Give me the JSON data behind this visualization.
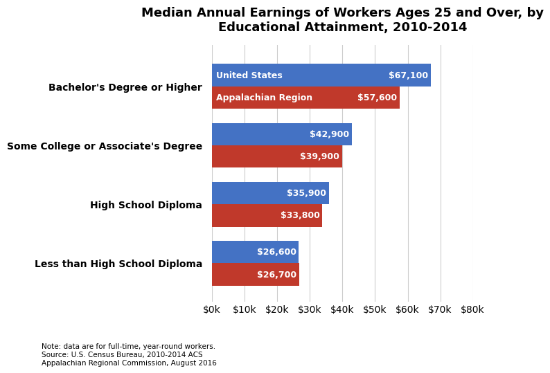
{
  "title": "Median Annual Earnings of Workers Ages 25 and Over, by\nEducational Attainment, 2010-2014",
  "categories": [
    "Less than High School Diploma",
    "High School Diploma",
    "Some College or Associate's Degree",
    "Bachelor's Degree or Higher"
  ],
  "us_values": [
    26600,
    35900,
    42900,
    67100
  ],
  "app_values": [
    26700,
    33800,
    39900,
    57600
  ],
  "us_color": "#4472C4",
  "app_color": "#C0392B",
  "us_label": "United States",
  "app_label": "Appalachian Region",
  "show_series_label": [
    false,
    false,
    false,
    true
  ],
  "xlim": [
    0,
    80000
  ],
  "xticks": [
    0,
    10000,
    20000,
    30000,
    40000,
    50000,
    60000,
    70000,
    80000
  ],
  "xtick_labels": [
    "$0k",
    "$10k",
    "$20k",
    "$30k",
    "$40k",
    "$50k",
    "$60k",
    "$70k",
    "$80k"
  ],
  "note": "Note: data are for full-time, year-round workers.\nSource: U.S. Census Bureau, 2010-2014 ACS\nAppalachian Regional Commission, August 2016",
  "title_fontsize": 13,
  "label_fontsize": 10,
  "bar_height": 0.38,
  "bar_label_fontsize": 9,
  "note_fontsize": 7.5,
  "background_color": "#ffffff",
  "grid_color": "#cccccc"
}
